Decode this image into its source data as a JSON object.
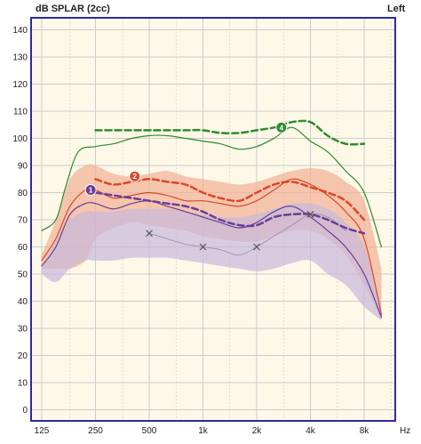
{
  "header": {
    "ylabel": "dB SPLAR (2cc)",
    "ear": "Left",
    "xunit": "Hz"
  },
  "colors": {
    "background": "#fdf8e8",
    "grid": "#cccccc",
    "frame": "#2a2aa8",
    "green": "#2e8b2e",
    "red": "#d9482b",
    "purple": "#6a3d9a",
    "red_band": "#f2b49a",
    "purple_band": "#c8b8dc",
    "thin": "#9a8aa8",
    "cross": "#555555"
  },
  "chart_data": {
    "type": "line",
    "xscale": "log",
    "ylim": [
      0,
      140
    ],
    "yticks": [
      0,
      10,
      20,
      30,
      40,
      50,
      60,
      70,
      80,
      90,
      100,
      110,
      120,
      130,
      140
    ],
    "xticks": [
      {
        "f": 125,
        "label": "125"
      },
      {
        "f": 250,
        "label": "250"
      },
      {
        "f": 500,
        "label": "500"
      },
      {
        "f": 1000,
        "label": "1k"
      },
      {
        "f": 2000,
        "label": "2k"
      },
      {
        "f": 4000,
        "label": "4k"
      },
      {
        "f": 8000,
        "label": "8k"
      }
    ],
    "xticks_unlabeled": [
      180,
      355,
      710,
      1410,
      2830,
      5660,
      11300
    ],
    "bands": [
      {
        "name": "band-red",
        "color": "red_band",
        "opacity": 0.75,
        "upper": [
          [
            125,
            57
          ],
          [
            150,
            70
          ],
          [
            180,
            85
          ],
          [
            220,
            90
          ],
          [
            250,
            90
          ],
          [
            315,
            87
          ],
          [
            400,
            86
          ],
          [
            500,
            87
          ],
          [
            630,
            88
          ],
          [
            800,
            86
          ],
          [
            1000,
            85
          ],
          [
            1250,
            84
          ],
          [
            1600,
            83
          ],
          [
            2000,
            84
          ],
          [
            2500,
            86
          ],
          [
            3150,
            88
          ],
          [
            4000,
            89
          ],
          [
            5000,
            88
          ],
          [
            6300,
            84
          ],
          [
            8000,
            77
          ],
          [
            10000,
            52
          ]
        ],
        "lower": [
          [
            125,
            52
          ],
          [
            150,
            52
          ],
          [
            180,
            52
          ],
          [
            220,
            55
          ],
          [
            250,
            63
          ],
          [
            315,
            67
          ],
          [
            400,
            69
          ],
          [
            500,
            68
          ],
          [
            630,
            67
          ],
          [
            800,
            66
          ],
          [
            1000,
            64
          ],
          [
            1250,
            63
          ],
          [
            1600,
            62
          ],
          [
            2000,
            62
          ],
          [
            2500,
            64
          ],
          [
            3150,
            66
          ],
          [
            4000,
            66
          ],
          [
            5000,
            63
          ],
          [
            6300,
            57
          ],
          [
            8000,
            46
          ],
          [
            10000,
            33
          ]
        ]
      },
      {
        "name": "band-purple",
        "color": "purple_band",
        "opacity": 0.7,
        "upper": [
          [
            125,
            52
          ],
          [
            150,
            62
          ],
          [
            180,
            70
          ],
          [
            220,
            73
          ],
          [
            250,
            73
          ],
          [
            315,
            73
          ],
          [
            400,
            74
          ],
          [
            500,
            74
          ],
          [
            630,
            74
          ],
          [
            800,
            73
          ],
          [
            1000,
            72
          ],
          [
            1250,
            71
          ],
          [
            1600,
            71
          ],
          [
            2000,
            72
          ],
          [
            2500,
            74
          ],
          [
            3150,
            76
          ],
          [
            4000,
            76
          ],
          [
            5000,
            74
          ],
          [
            6300,
            69
          ],
          [
            8000,
            60
          ],
          [
            10000,
            38
          ]
        ],
        "lower": [
          [
            125,
            50
          ],
          [
            150,
            47
          ],
          [
            180,
            52
          ],
          [
            220,
            55
          ],
          [
            250,
            55
          ],
          [
            315,
            55
          ],
          [
            400,
            56
          ],
          [
            500,
            56
          ],
          [
            630,
            56
          ],
          [
            800,
            55
          ],
          [
            1000,
            54
          ],
          [
            1250,
            53
          ],
          [
            1600,
            52
          ],
          [
            2000,
            51
          ],
          [
            2500,
            52
          ],
          [
            3150,
            54
          ],
          [
            4000,
            55
          ],
          [
            5000,
            50
          ],
          [
            6300,
            46
          ],
          [
            8000,
            38
          ],
          [
            10000,
            33
          ]
        ]
      }
    ],
    "series": [
      {
        "name": "thin-green",
        "color": "green",
        "width": 1.2,
        "dash": "",
        "points": [
          [
            125,
            66
          ],
          [
            150,
            70
          ],
          [
            170,
            82
          ],
          [
            200,
            95
          ],
          [
            250,
            97
          ],
          [
            315,
            98
          ],
          [
            400,
            100
          ],
          [
            500,
            101
          ],
          [
            630,
            101
          ],
          [
            800,
            100
          ],
          [
            1000,
            99
          ],
          [
            1250,
            98
          ],
          [
            1600,
            96
          ],
          [
            2000,
            97
          ],
          [
            2500,
            100
          ],
          [
            3150,
            104
          ],
          [
            4000,
            99
          ],
          [
            5000,
            95
          ],
          [
            6300,
            88
          ],
          [
            8000,
            80
          ],
          [
            10000,
            60
          ]
        ]
      },
      {
        "name": "thin-red",
        "color": "red",
        "width": 1.2,
        "dash": "",
        "points": [
          [
            125,
            55
          ],
          [
            150,
            63
          ],
          [
            180,
            75
          ],
          [
            220,
            81
          ],
          [
            250,
            81
          ],
          [
            315,
            78
          ],
          [
            400,
            79
          ],
          [
            500,
            80
          ],
          [
            630,
            79
          ],
          [
            800,
            77
          ],
          [
            1000,
            77
          ],
          [
            1250,
            76
          ],
          [
            1600,
            75
          ],
          [
            2000,
            77
          ],
          [
            2500,
            81
          ],
          [
            3150,
            85
          ],
          [
            4000,
            83
          ],
          [
            5000,
            79
          ],
          [
            6300,
            73
          ],
          [
            8000,
            63
          ],
          [
            10000,
            35
          ]
        ]
      },
      {
        "name": "thin-purple",
        "color": "purple",
        "width": 1.2,
        "dash": "",
        "points": [
          [
            125,
            53
          ],
          [
            150,
            60
          ],
          [
            180,
            72
          ],
          [
            220,
            76
          ],
          [
            250,
            76
          ],
          [
            315,
            74
          ],
          [
            400,
            76
          ],
          [
            500,
            77
          ],
          [
            630,
            75
          ],
          [
            800,
            73
          ],
          [
            1000,
            71
          ],
          [
            1250,
            69
          ],
          [
            1600,
            67
          ],
          [
            2000,
            69
          ],
          [
            2500,
            73
          ],
          [
            3150,
            75
          ],
          [
            4000,
            71
          ],
          [
            5000,
            66
          ],
          [
            6300,
            60
          ],
          [
            8000,
            50
          ],
          [
            10000,
            34
          ]
        ]
      },
      {
        "name": "thin-gray",
        "color": "thin",
        "width": 0.8,
        "dash": "",
        "points": [
          [
            500,
            65
          ],
          [
            630,
            63
          ],
          [
            800,
            61
          ],
          [
            1000,
            60
          ],
          [
            1250,
            59
          ],
          [
            1600,
            57
          ],
          [
            2000,
            60
          ],
          [
            2500,
            64
          ],
          [
            3150,
            68
          ],
          [
            4000,
            72
          ],
          [
            5000,
            71
          ],
          [
            6300,
            66
          ]
        ]
      },
      {
        "name": "dashed-green",
        "color": "green",
        "width": 2.5,
        "dash": "7,4",
        "points": [
          [
            250,
            103
          ],
          [
            315,
            103
          ],
          [
            400,
            103
          ],
          [
            500,
            103
          ],
          [
            630,
            103
          ],
          [
            800,
            103
          ],
          [
            1000,
            103
          ],
          [
            1250,
            102
          ],
          [
            1600,
            102
          ],
          [
            2000,
            103
          ],
          [
            2500,
            104
          ],
          [
            3150,
            106
          ],
          [
            4000,
            106
          ],
          [
            5000,
            101
          ],
          [
            6300,
            98
          ],
          [
            8000,
            98
          ]
        ]
      },
      {
        "name": "dashed-red",
        "color": "red",
        "width": 2.5,
        "dash": "7,4",
        "points": [
          [
            250,
            85
          ],
          [
            315,
            83
          ],
          [
            400,
            84
          ],
          [
            500,
            85
          ],
          [
            630,
            84
          ],
          [
            800,
            83
          ],
          [
            1000,
            80
          ],
          [
            1250,
            78
          ],
          [
            1600,
            77
          ],
          [
            2000,
            80
          ],
          [
            2500,
            83
          ],
          [
            3150,
            84
          ],
          [
            4000,
            82
          ],
          [
            5000,
            80
          ],
          [
            6300,
            77
          ],
          [
            8000,
            70
          ]
        ]
      },
      {
        "name": "dashed-purple",
        "color": "purple",
        "width": 2.5,
        "dash": "7,4",
        "points": [
          [
            250,
            80
          ],
          [
            315,
            79
          ],
          [
            400,
            78
          ],
          [
            500,
            77
          ],
          [
            630,
            76
          ],
          [
            800,
            75
          ],
          [
            1000,
            73
          ],
          [
            1250,
            70
          ],
          [
            1600,
            68
          ],
          [
            2000,
            68
          ],
          [
            2500,
            71
          ],
          [
            3150,
            72
          ],
          [
            4000,
            72
          ],
          [
            5000,
            70
          ],
          [
            6300,
            67
          ],
          [
            8000,
            65
          ]
        ]
      }
    ],
    "markers": [
      {
        "label": "1",
        "f": 235,
        "y": 81,
        "color": "purple"
      },
      {
        "label": "2",
        "f": 415,
        "y": 86,
        "color": "red"
      },
      {
        "label": "4",
        "f": 2750,
        "y": 104,
        "color": "green"
      }
    ],
    "crosses": [
      [
        500,
        65
      ],
      [
        1000,
        60
      ],
      [
        2000,
        60
      ],
      [
        4000,
        72
      ]
    ]
  }
}
